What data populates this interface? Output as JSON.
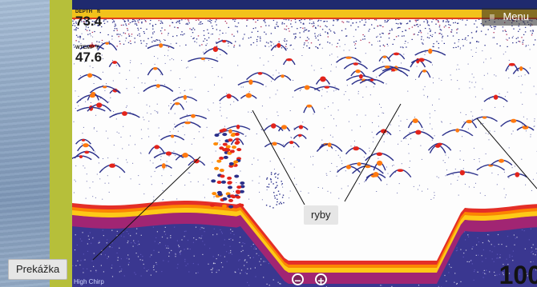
{
  "readouts": {
    "depth": {
      "label": "DEPTH",
      "unit": "ft",
      "value": "73.4"
    },
    "temp": {
      "label": "WTEMP",
      "unit": "°F",
      "value": "47.6"
    }
  },
  "menu": {
    "label": "Menu",
    "icon": "hamburger-icon"
  },
  "callouts": {
    "fish": "ryby",
    "obstacle": "Prekážka"
  },
  "zoom": {
    "out": "−",
    "in": "+"
  },
  "range": {
    "bottom_depth": "100"
  },
  "source": {
    "label": "High Chirp"
  },
  "colors": {
    "bottom_core": "#ff8a00",
    "bottom_edge": "#e3241b",
    "noise": "#2a2f8a",
    "band": "#f2c21b"
  }
}
